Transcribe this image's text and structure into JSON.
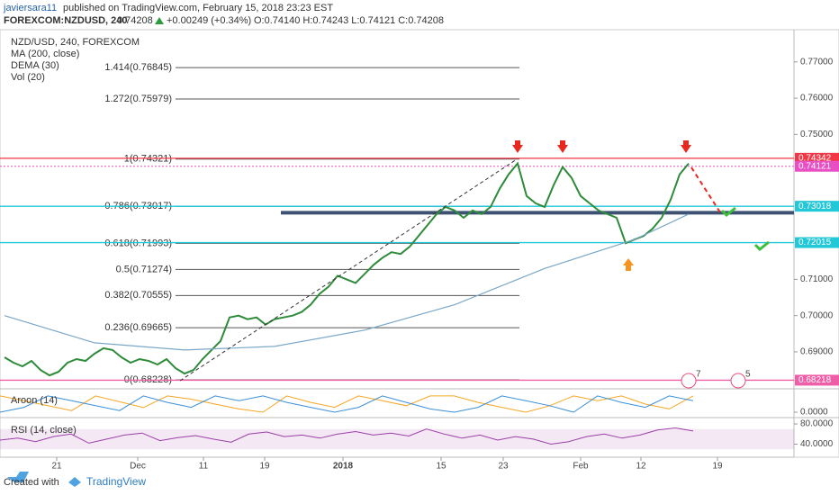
{
  "header": {
    "author": "javiersara11",
    "published": "published on TradingView.com, February 15, 2018 23:23 EST"
  },
  "symbol_line": {
    "symbol": "FOREXCOM:NZDUSD, 240",
    "last": "0.74208",
    "change": "+0.00249 (+0.34%)",
    "ohlc": "O:0.74140 H:0.74243 L:0.74121 C:0.74208"
  },
  "chart_data": {
    "type": "line",
    "indicators": [
      "DEMA (30)",
      "Vol (20)"
    ],
    "xlim": [
      -0.5,
      87.7
    ],
    "xticks": [
      {
        "value": 5.8,
        "label": "21"
      },
      {
        "value": 14.8,
        "label": "Dec"
      },
      {
        "value": 22.1,
        "label": "11"
      },
      {
        "value": 28.9,
        "label": "19"
      },
      {
        "value": 37.6,
        "label": "2018"
      },
      {
        "value": 48.5,
        "label": "15"
      },
      {
        "value": 55.4,
        "label": "23"
      },
      {
        "value": 64,
        "label": "Feb"
      },
      {
        "value": 70.7,
        "label": "12"
      },
      {
        "value": 79.2,
        "label": "19"
      }
    ],
    "ylim": [
      0.6803,
      0.7789
    ],
    "yticks": [
      {
        "value": 0.69,
        "label": "0.69000"
      },
      {
        "value": 0.7,
        "label": "0.70000"
      },
      {
        "value": 0.71,
        "label": "0.71000"
      },
      {
        "value": 0.75,
        "label": "0.75000"
      },
      {
        "value": 0.76,
        "label": "0.76000"
      },
      {
        "value": 0.77,
        "label": "0.77000"
      }
    ],
    "series": [
      {
        "name": "NZD/USD, 240, FOREXCOM",
        "color": "#2e8b3a",
        "values": [
          0.6885,
          0.687,
          0.686,
          0.6875,
          0.685,
          0.6835,
          0.6845,
          0.687,
          0.688,
          0.6875,
          0.6895,
          0.691,
          0.6905,
          0.6885,
          0.687,
          0.688,
          0.6875,
          0.6865,
          0.688,
          0.6855,
          0.684,
          0.685,
          0.688,
          0.6905,
          0.693,
          0.6995,
          0.7,
          0.699,
          0.6995,
          0.6975,
          0.699,
          0.6995,
          0.7,
          0.701,
          0.703,
          0.706,
          0.708,
          0.711,
          0.71,
          0.709,
          0.7115,
          0.714,
          0.716,
          0.7175,
          0.717,
          0.719,
          0.722,
          0.725,
          0.728,
          0.73,
          0.729,
          0.727,
          0.729,
          0.728,
          0.73,
          0.735,
          0.739,
          0.742,
          0.733,
          0.731,
          0.73,
          0.736,
          0.741,
          0.738,
          0.733,
          0.731,
          0.729,
          0.728,
          0.727,
          0.72,
          0.721,
          0.722,
          0.724,
          0.727,
          0.732,
          0.739,
          0.742
        ]
      },
      {
        "name": "MA (200, close)",
        "color": "#7aa7c7",
        "x": [
          0,
          10,
          20,
          30,
          40,
          50,
          60,
          70,
          76
        ],
        "values": [
          0.7,
          0.6925,
          0.6905,
          0.6915,
          0.696,
          0.703,
          0.713,
          0.721,
          0.728
        ]
      }
    ],
    "fib_levels": [
      {
        "label": "1.414(0.76845)",
        "value": 0.76845
      },
      {
        "label": "1.272(0.75979)",
        "value": 0.75979
      },
      {
        "label": "1(0.74321)",
        "value": 0.74321
      },
      {
        "label": "0.786(0.73017)",
        "value": 0.73017
      },
      {
        "label": "0.618(0.71993)",
        "value": 0.71993
      },
      {
        "label": "0.5(0.71274)",
        "value": 0.71274
      },
      {
        "label": "0.382(0.70555)",
        "value": 0.70555
      },
      {
        "label": "0.236(0.69665)",
        "value": 0.69665
      },
      {
        "label": "0(0.68228)",
        "value": 0.68228
      }
    ],
    "hlines": [
      {
        "value": 0.74342,
        "label": "0.74342",
        "color": "#f23645"
      },
      {
        "value": 0.74121,
        "label": "0.74121",
        "color": "#e84fc4"
      },
      {
        "value": 0.73018,
        "label": "0.73018",
        "color": "#22c7d8"
      },
      {
        "value": 0.72015,
        "label": "0.72015",
        "color": "#22c7d8"
      },
      {
        "value": 0.68218,
        "label": "0.68218",
        "color": "#ef5fa7"
      }
    ],
    "support_line": {
      "value": 0.7284,
      "color": "#3d5173"
    },
    "events": [
      "7",
      "5"
    ],
    "aroon": {
      "title": "Aroon (14)",
      "ylim": [
        -22,
        116
      ],
      "yticks": [
        {
          "value": 0,
          "label": "0.0000"
        }
      ],
      "series": [
        {
          "color": "#f5a623",
          "values": [
            100,
            70,
            40,
            10,
            100,
            64,
            28,
            100,
            80,
            50,
            20,
            0,
            100,
            60,
            30,
            100,
            70,
            40,
            100,
            100,
            60,
            30,
            0,
            40,
            100,
            70,
            100,
            50,
            20,
            100
          ]
        },
        {
          "color": "#3b8fd8",
          "values": [
            0,
            30,
            100,
            70,
            40,
            10,
            100,
            60,
            30,
            100,
            70,
            100,
            60,
            30,
            0,
            30,
            100,
            60,
            20,
            0,
            30,
            100,
            70,
            40,
            0,
            100,
            60,
            30,
            100,
            70
          ]
        }
      ]
    },
    "rsi": {
      "title": "RSI (14, close)",
      "ylim": [
        16,
        89
      ],
      "band": [
        30,
        70
      ],
      "yticks": [
        {
          "value": 80,
          "label": "80.0000"
        },
        {
          "value": 40,
          "label": "40.0000"
        }
      ],
      "color": "#9c3fa8",
      "values": [
        48,
        52,
        45,
        55,
        60,
        42,
        50,
        58,
        62,
        47,
        53,
        57,
        50,
        44,
        60,
        64,
        55,
        58,
        52,
        60,
        65,
        58,
        62,
        56,
        70,
        60,
        52,
        58,
        48,
        55,
        50,
        40,
        45,
        55,
        60,
        52,
        58,
        68,
        72,
        66
      ]
    }
  },
  "footer": {
    "created": "Created with",
    "brand": "TradingView"
  }
}
